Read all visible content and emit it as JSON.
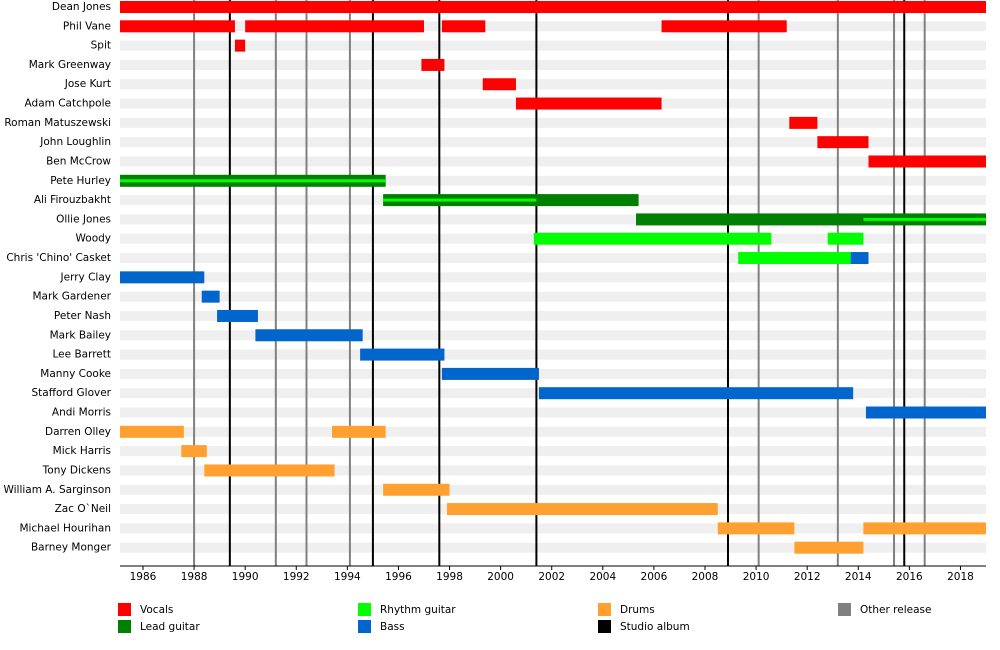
{
  "chart_data": {
    "type": "timeline",
    "xlim": [
      1985.1,
      2019.0
    ],
    "xticks": [
      1986,
      1988,
      1990,
      1992,
      1994,
      1996,
      1998,
      2000,
      2002,
      2004,
      2006,
      2008,
      2010,
      2012,
      2014,
      2016,
      2018
    ],
    "roles": [
      {
        "name": "Vocals",
        "color": "#ff0000"
      },
      {
        "name": "Lead guitar",
        "color": "#008000"
      },
      {
        "name": "Rhythm guitar",
        "color": "#00ff00"
      },
      {
        "name": "Bass",
        "color": "#0066cc"
      },
      {
        "name": "Drums",
        "color": "#ffa030"
      }
    ],
    "releases": [
      {
        "name": "Studio album",
        "color": "#000000",
        "x": [
          1989.4,
          1995.0,
          1997.6,
          2001.4,
          2008.9,
          2015.8
        ]
      },
      {
        "name": "Other release",
        "color": "#808080",
        "x": [
          1988.0,
          1991.2,
          1992.4,
          1994.1,
          2010.1,
          2013.2,
          2015.4,
          2016.6
        ]
      }
    ],
    "rows": [
      {
        "name": "Dean Jones",
        "periods": [
          {
            "role": "Vocals",
            "start": 1985.1,
            "end": 2019.0
          }
        ]
      },
      {
        "name": "Phil Vane",
        "periods": [
          {
            "role": "Vocals",
            "start": 1985.1,
            "end": 1989.6
          },
          {
            "role": "Vocals",
            "start": 1990.0,
            "end": 1997.0
          },
          {
            "role": "Vocals",
            "start": 1997.7,
            "end": 1999.4
          },
          {
            "role": "Vocals",
            "start": 2006.3,
            "end": 2011.2
          }
        ]
      },
      {
        "name": "Spit",
        "periods": [
          {
            "role": "Vocals",
            "start": 1989.6,
            "end": 1990.0
          }
        ]
      },
      {
        "name": "Mark Greenway",
        "periods": [
          {
            "role": "Vocals",
            "start": 1996.9,
            "end": 1997.8
          }
        ]
      },
      {
        "name": "Jose Kurt",
        "periods": [
          {
            "role": "Vocals",
            "start": 1999.3,
            "end": 2000.6
          }
        ]
      },
      {
        "name": "Adam Catchpole",
        "periods": [
          {
            "role": "Vocals",
            "start": 2000.6,
            "end": 2006.3
          }
        ]
      },
      {
        "name": "Roman Matuszewski",
        "periods": [
          {
            "role": "Vocals",
            "start": 2011.3,
            "end": 2012.4
          }
        ]
      },
      {
        "name": "John Loughlin",
        "periods": [
          {
            "role": "Vocals",
            "start": 2012.4,
            "end": 2014.4
          }
        ]
      },
      {
        "name": "Ben McCrow",
        "periods": [
          {
            "role": "Vocals",
            "start": 2014.4,
            "end": 2019.0
          }
        ]
      },
      {
        "name": "Pete Hurley",
        "periods": [
          {
            "role": "Lead guitar",
            "start": 1985.1,
            "end": 1995.5
          },
          {
            "role": "Rhythm guitar",
            "start": 1985.1,
            "end": 1995.5
          }
        ]
      },
      {
        "name": "Ali Firouzbakht",
        "periods": [
          {
            "role": "Lead guitar",
            "start": 1995.4,
            "end": 2005.4
          },
          {
            "role": "Rhythm guitar",
            "start": 1995.4,
            "end": 2001.4
          }
        ]
      },
      {
        "name": "Ollie Jones",
        "periods": [
          {
            "role": "Lead guitar",
            "start": 2005.3,
            "end": 2019.0
          },
          {
            "role": "Rhythm guitar",
            "start": 2014.2,
            "end": 2019.0
          }
        ]
      },
      {
        "name": "Woody",
        "periods": [
          {
            "role": "Rhythm guitar",
            "start": 2001.3,
            "end": 2010.6
          },
          {
            "role": "Rhythm guitar",
            "start": 2012.8,
            "end": 2014.2
          }
        ]
      },
      {
        "name": "Chris 'Chino' Casket",
        "periods": [
          {
            "role": "Rhythm guitar",
            "start": 2009.3,
            "end": 2013.7
          },
          {
            "role": "Bass",
            "start": 2013.7,
            "end": 2014.4
          }
        ]
      },
      {
        "name": "Jerry Clay",
        "periods": [
          {
            "role": "Bass",
            "start": 1985.1,
            "end": 1988.4
          }
        ]
      },
      {
        "name": "Mark Gardener",
        "periods": [
          {
            "role": "Bass",
            "start": 1988.3,
            "end": 1989.0
          }
        ]
      },
      {
        "name": "Peter Nash",
        "periods": [
          {
            "role": "Bass",
            "start": 1988.9,
            "end": 1990.5
          }
        ]
      },
      {
        "name": "Mark Bailey",
        "periods": [
          {
            "role": "Bass",
            "start": 1990.4,
            "end": 1994.6
          }
        ]
      },
      {
        "name": "Lee Barrett",
        "periods": [
          {
            "role": "Bass",
            "start": 1994.5,
            "end": 1997.8
          }
        ]
      },
      {
        "name": "Manny Cooke",
        "periods": [
          {
            "role": "Bass",
            "start": 1997.7,
            "end": 2001.5
          }
        ]
      },
      {
        "name": "Stafford Glover",
        "periods": [
          {
            "role": "Bass",
            "start": 2001.5,
            "end": 2013.8
          }
        ]
      },
      {
        "name": "Andi Morris",
        "periods": [
          {
            "role": "Bass",
            "start": 2014.3,
            "end": 2019.0
          }
        ]
      },
      {
        "name": "Darren Olley",
        "periods": [
          {
            "role": "Drums",
            "start": 1985.1,
            "end": 1987.6
          },
          {
            "role": "Drums",
            "start": 1993.4,
            "end": 1995.5
          }
        ]
      },
      {
        "name": "Mick Harris",
        "periods": [
          {
            "role": "Drums",
            "start": 1987.5,
            "end": 1988.5
          }
        ]
      },
      {
        "name": "Tony Dickens",
        "periods": [
          {
            "role": "Drums",
            "start": 1988.4,
            "end": 1993.5
          }
        ]
      },
      {
        "name": "William A. Sarginson",
        "periods": [
          {
            "role": "Drums",
            "start": 1995.4,
            "end": 1998.0
          }
        ]
      },
      {
        "name": "Zac O`Neil",
        "periods": [
          {
            "role": "Drums",
            "start": 1997.9,
            "end": 2008.5
          }
        ]
      },
      {
        "name": "Michael Hourihan",
        "periods": [
          {
            "role": "Drums",
            "start": 2008.5,
            "end": 2011.5
          },
          {
            "role": "Drums",
            "start": 2014.2,
            "end": 2019.0
          }
        ]
      },
      {
        "name": "Barney Monger",
        "periods": [
          {
            "role": "Drums",
            "start": 2011.5,
            "end": 2014.2
          }
        ]
      }
    ]
  }
}
